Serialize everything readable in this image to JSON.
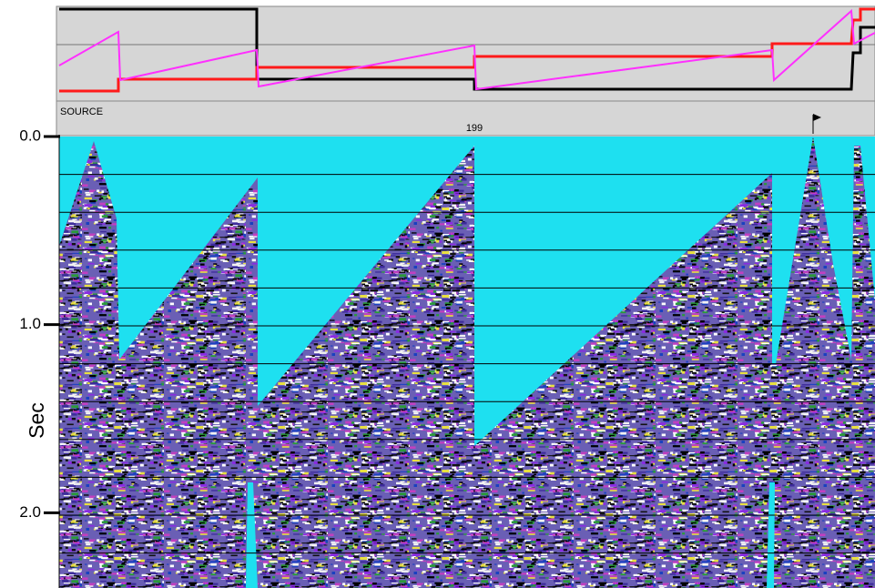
{
  "header": {
    "track_label": "SOURCE",
    "marker_label": "199"
  },
  "axis": {
    "label": "Sec",
    "ylim": [
      0,
      2.4
    ],
    "ticks": [
      {
        "value": 0,
        "label": "0.0"
      },
      {
        "value": 1,
        "label": "1.0"
      },
      {
        "value": 2,
        "label": "2.0"
      }
    ]
  }
}
